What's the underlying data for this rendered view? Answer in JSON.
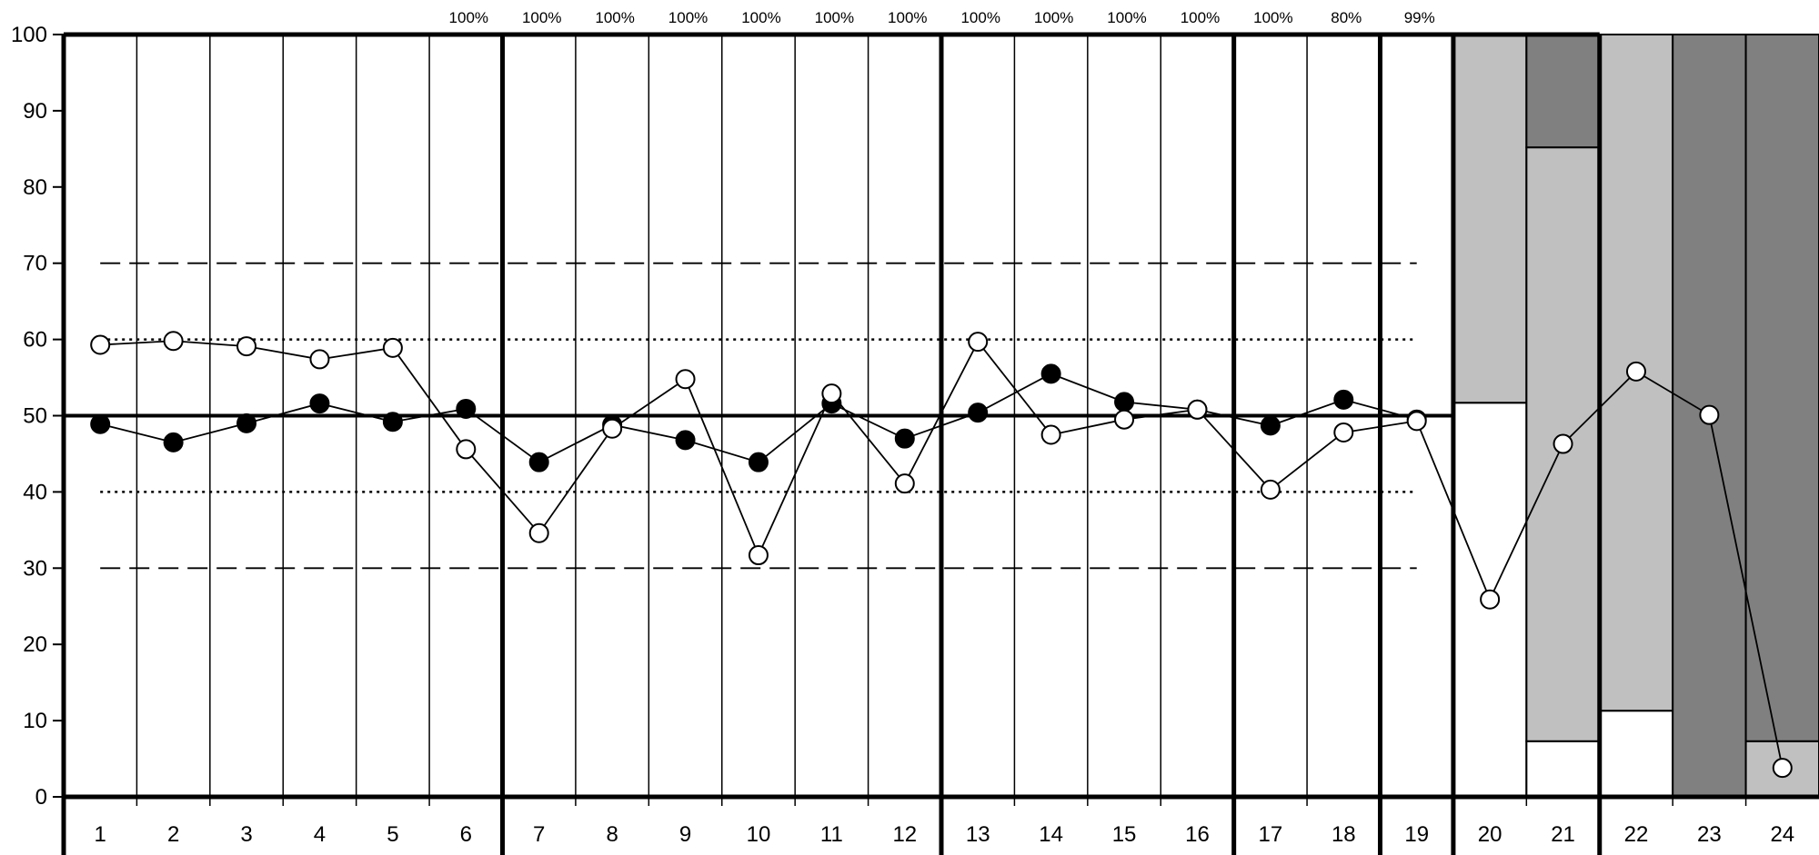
{
  "chart_data": {
    "type": "line",
    "title": "",
    "xlabel": "",
    "ylabel": "",
    "ylim": [
      0,
      100
    ],
    "yticks": [
      0,
      10,
      20,
      30,
      40,
      50,
      60,
      70,
      80,
      90,
      100
    ],
    "categories": [
      "1",
      "2",
      "3",
      "4",
      "5",
      "6",
      "7",
      "8",
      "9",
      "10",
      "11",
      "12",
      "13",
      "14",
      "15",
      "16",
      "17",
      "18",
      "19",
      "20",
      "21",
      "22",
      "23",
      "24"
    ],
    "top_labels": [
      "",
      "",
      "",
      "",
      "",
      "100%",
      "100%",
      "100%",
      "100%",
      "100%",
      "100%",
      "100%",
      "100%",
      "100%",
      "100%",
      "100%",
      "100%",
      "80%",
      "99%",
      "",
      "",
      "",
      "",
      ""
    ],
    "reference_lines": [
      {
        "value": 50,
        "style": "solid"
      },
      {
        "value": 60,
        "style": "dotted"
      },
      {
        "value": 40,
        "style": "dotted"
      },
      {
        "value": 70,
        "style": "dashed"
      },
      {
        "value": 30,
        "style": "dashed"
      }
    ],
    "group_boundaries_after": [
      6,
      12,
      16,
      18,
      19,
      21
    ],
    "series": [
      {
        "marker": "filled",
        "color": "#000000",
        "values": [
          48.9,
          46.5,
          49.0,
          51.6,
          49.2,
          50.9,
          43.9,
          48.8,
          46.8,
          43.9,
          51.6,
          47.0,
          50.4,
          55.5,
          51.8,
          50.8,
          48.7,
          52.1,
          49.5,
          null,
          null,
          null,
          null,
          null
        ]
      },
      {
        "marker": "open",
        "color": "#ffffff",
        "values": [
          59.3,
          59.8,
          59.1,
          57.4,
          58.9,
          45.6,
          34.6,
          48.3,
          54.8,
          31.7,
          52.9,
          41.1,
          59.7,
          47.5,
          49.5,
          50.8,
          40.3,
          47.8,
          49.3,
          25.9,
          46.3,
          55.8,
          50.1,
          3.8
        ]
      }
    ],
    "stacked_bars": [
      {
        "category": "20",
        "bands": [
          {
            "value": 51.7,
            "color": "#ffffff"
          },
          {
            "value": 48.3,
            "color": "#c0c0c0"
          }
        ]
      },
      {
        "category": "21",
        "bands": [
          {
            "value": 7.3,
            "color": "#ffffff"
          },
          {
            "value": 77.9,
            "color": "#c0c0c0"
          },
          {
            "value": 14.8,
            "color": "#808080"
          }
        ]
      },
      {
        "category": "22",
        "bands": [
          {
            "value": 11.3,
            "color": "#ffffff"
          },
          {
            "value": 88.7,
            "color": "#c0c0c0"
          }
        ]
      },
      {
        "category": "23",
        "bands": [
          {
            "value": 100,
            "color": "#808080"
          }
        ]
      },
      {
        "category": "24",
        "bands": [
          {
            "value": 7.3,
            "color": "#c0c0c0"
          },
          {
            "value": 92.7,
            "color": "#808080"
          }
        ]
      }
    ],
    "grid": true
  }
}
